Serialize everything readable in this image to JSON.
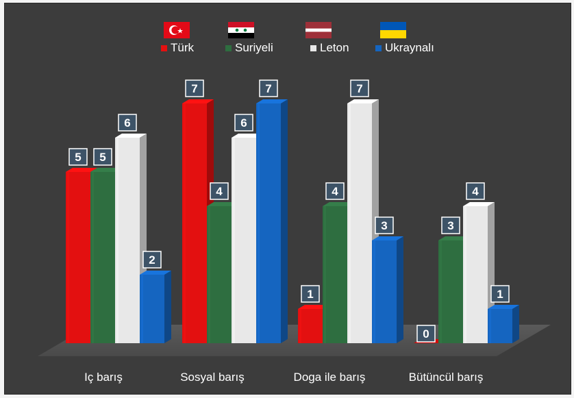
{
  "chart_data": {
    "type": "bar",
    "categories": [
      "Iç barış",
      "Sosyal barış",
      "Doga ile barış",
      "Bütüncül barış"
    ],
    "series": [
      {
        "name": "Türk",
        "values": [
          5,
          7,
          1,
          0
        ],
        "color": "#e31010",
        "flag": "turkey-flag-icon"
      },
      {
        "name": "Suriyeli",
        "values": [
          5,
          4,
          4,
          3
        ],
        "color": "#2e6e40",
        "flag": "syria-flag-icon"
      },
      {
        "name": "Leton",
        "values": [
          6,
          6,
          7,
          4
        ],
        "color": "#e8e8e8",
        "flag": "latvia-flag-icon"
      },
      {
        "name": "Ukraynalı",
        "values": [
          2,
          7,
          3,
          1
        ],
        "color": "#1565c0",
        "flag": "ukraine-flag-icon"
      }
    ],
    "ylim": [
      0,
      7
    ],
    "legend_position": "top",
    "data_labels": true,
    "grid": false,
    "style": "3d-columns",
    "background": "#3c3c3c"
  }
}
